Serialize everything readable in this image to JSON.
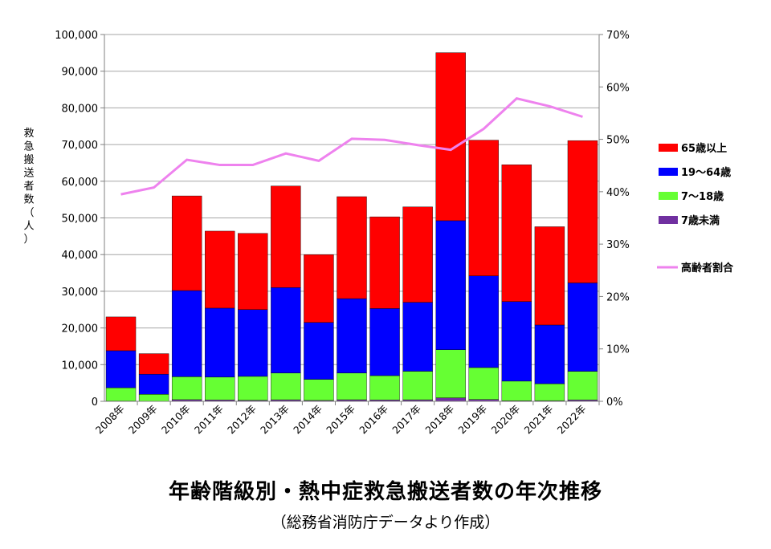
{
  "chart_data": {
    "type": "bar",
    "title": "年齢階級別・熱中症救急搬送者数の年次推移",
    "subtitle": "（総務省消防庁データより作成）",
    "ylabel": "救急搬送者数（人）",
    "ylabel_chars": [
      "救",
      "急",
      "搬",
      "送",
      "者",
      "数",
      "（",
      "人",
      "）"
    ],
    "y_left_lim": [
      0,
      100000
    ],
    "y_left_ticks": [
      "0",
      "10,000",
      "20,000",
      "30,000",
      "40,000",
      "50,000",
      "60,000",
      "70,000",
      "80,000",
      "90,000",
      "100,000"
    ],
    "y_right_lim": [
      0,
      70
    ],
    "y_right_ticks": [
      "0%",
      "10%",
      "20%",
      "30%",
      "40%",
      "50%",
      "60%",
      "70%"
    ],
    "categories": [
      "2008年",
      "2009年",
      "2010年",
      "2011年",
      "2012年",
      "2013年",
      "2014年",
      "2015年",
      "2016年",
      "2017年",
      "2018年",
      "2019年",
      "2020年",
      "2021年",
      "2022年"
    ],
    "grid": true,
    "legend_placement": "right",
    "series": [
      {
        "name": "7歳未満",
        "type": "bar",
        "color": "#7030a0",
        "values": [
          100,
          60,
          450,
          380,
          300,
          420,
          250,
          430,
          390,
          420,
          950,
          500,
          180,
          190,
          400
        ]
      },
      {
        "name": "7～18歳",
        "type": "bar",
        "color": "#66ff33",
        "values": [
          3600,
          1840,
          6250,
          6220,
          6500,
          7280,
          5750,
          7270,
          6610,
          7780,
          13100,
          8700,
          5320,
          4610,
          7780
        ]
      },
      {
        "name": "19～64歳",
        "type": "bar",
        "color": "#0000ff",
        "values": [
          10100,
          5500,
          23500,
          18800,
          18200,
          23300,
          15500,
          20300,
          18300,
          18800,
          35200,
          25000,
          21700,
          16000,
          24100
        ]
      },
      {
        "name": "65歳以上",
        "type": "bar",
        "color": "#ff0000",
        "values": [
          9200,
          5600,
          25800,
          21000,
          20800,
          27700,
          18500,
          27800,
          25000,
          26000,
          45800,
          37000,
          37300,
          26800,
          38800
        ]
      },
      {
        "name": "高齢者割合",
        "type": "line",
        "axis": "right",
        "color": "#ee82ee",
        "values": [
          39.5,
          40.8,
          46.1,
          45.1,
          45.1,
          47.3,
          45.9,
          50.1,
          49.9,
          48.9,
          48.0,
          52.0,
          57.8,
          56.3,
          54.3
        ]
      }
    ]
  }
}
